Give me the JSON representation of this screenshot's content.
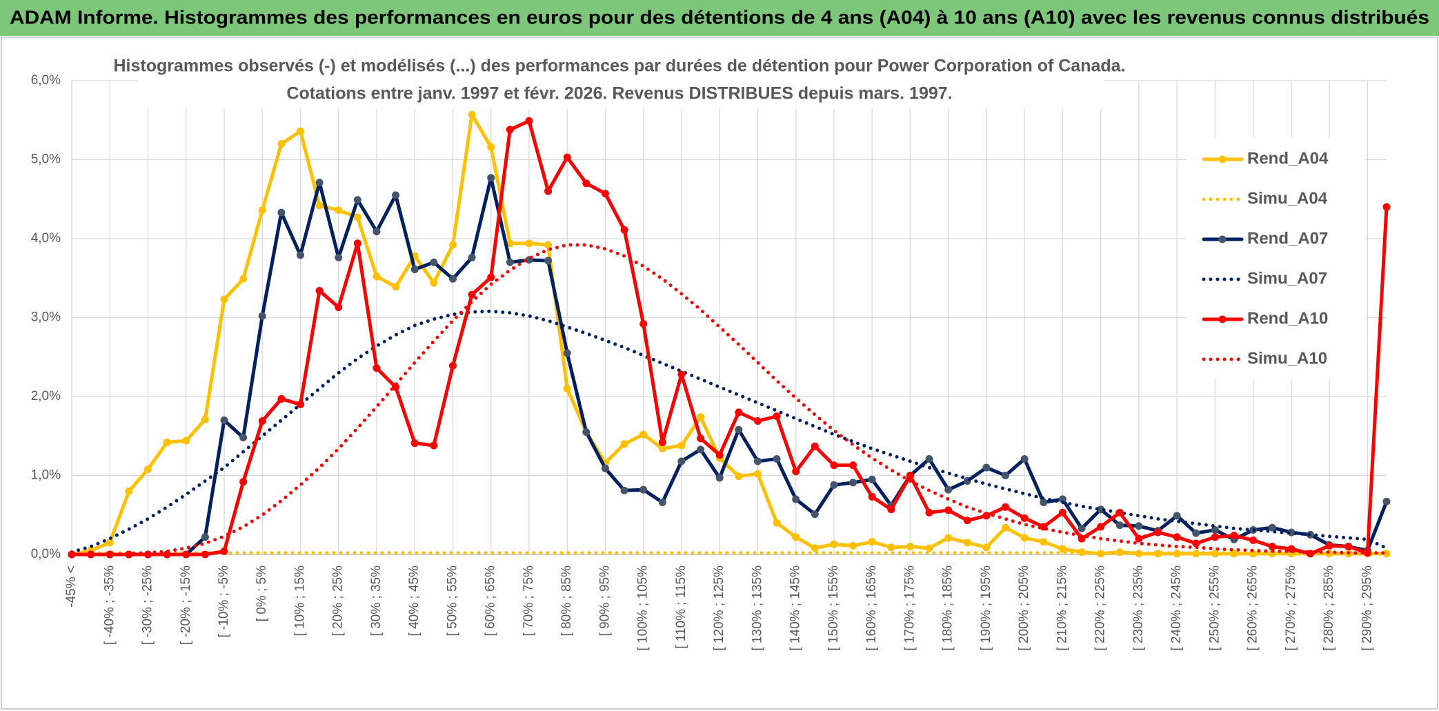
{
  "chart_data": {
    "type": "line",
    "title": "ADAM Informe. Histogrammes des performances en euros pour des détentions de 4 ans (A04) à 10 ans (A10) avec les revenus connus distribués",
    "subtitle": [
      "Histogrammes observés (-) et modélisés (...) des performances par durées de détention pour Power Corporation of Canada.",
      "Cotations entre janv. 1997 et févr. 2026. Revenus DISTRIBUES depuis mars. 1997."
    ],
    "categories": [
      "-45% <",
      null,
      "[ -40% ; -35%",
      null,
      "[ -30% ; -25%",
      null,
      "[ -20% ; -15%",
      null,
      "[ -10% ; -5%",
      null,
      "[ 0% ; 5%",
      null,
      "[ 10% ; 15%",
      null,
      "[ 20% ; 25%",
      null,
      "[ 30% ; 35%",
      null,
      "[ 40% ; 45%",
      null,
      "[ 50% ; 55%",
      null,
      "[ 60% ; 65%",
      null,
      "[ 70% ; 75%",
      null,
      "[ 80% ; 85%",
      null,
      "[ 90% ; 95%",
      null,
      "[ 100% ; 105%",
      null,
      "[ 110% ; 115%",
      null,
      "[ 120% ; 125%",
      null,
      "[ 130% ; 135%",
      null,
      "[ 140% ; 145%",
      null,
      "[ 150% ; 155%",
      null,
      "[ 160% ; 165%",
      null,
      "[ 170% ; 175%",
      null,
      "[ 180% ; 185%",
      null,
      "[ 190% ; 195%",
      null,
      "[ 200% ; 205%",
      null,
      "[ 210% ; 215%",
      null,
      "[ 220% ; 225%",
      null,
      "[ 230% ; 235%",
      null,
      "[ 240% ; 245%",
      null,
      "[ 250% ; 255%",
      null,
      "[ 260% ; 265%",
      null,
      "[ 270% ; 275%",
      null,
      "[ 280% ; 285%",
      null,
      "[ 290% ; 295%",
      null
    ],
    "ylim": [
      0,
      6
    ],
    "yticks": [
      {
        "value": 0,
        "label": "0,0%"
      },
      {
        "value": 1,
        "label": "1,0%"
      },
      {
        "value": 2,
        "label": "2,0%"
      },
      {
        "value": 3,
        "label": "3,0%"
      },
      {
        "value": 4,
        "label": "4,0%"
      },
      {
        "value": 5,
        "label": "5,0%"
      },
      {
        "value": 6,
        "label": "6,0%"
      }
    ],
    "grid": true,
    "legend": "right",
    "series": [
      {
        "name": "Rend_A04",
        "color": "#FFC000",
        "line_style": "solid",
        "values": [
          0,
          0.05,
          0.15,
          0.8,
          1.08,
          1.42,
          1.44,
          1.71,
          3.23,
          3.49,
          4.36,
          5.2,
          5.36,
          4.42,
          4.36,
          4.27,
          3.52,
          3.39,
          3.78,
          3.44,
          3.92,
          5.57,
          5.16,
          3.94,
          3.94,
          3.92,
          2.1,
          1.55,
          1.16,
          1.4,
          1.52,
          1.34,
          1.38,
          1.74,
          1.22,
          0.99,
          1.02,
          0.4,
          0.22,
          0.08,
          0.13,
          0.11,
          0.16,
          0.09,
          0.1,
          0.08,
          0.21,
          0.15,
          0.09,
          0.34,
          0.21,
          0.16,
          0.07,
          0.03,
          0.01,
          0.03,
          0.01,
          0.01,
          0.01,
          0.01,
          0.01,
          0.01,
          0.01,
          0.01,
          0.01,
          0.01,
          0.01,
          0.01,
          0.01,
          0.01
        ]
      },
      {
        "name": "Simu_A04",
        "color": "#FFC000",
        "line_style": "dotted",
        "values": [
          0.02,
          0.02,
          0.02,
          0.02,
          0.02,
          0.02,
          0.02,
          0.02,
          0.02,
          0.02,
          0.02,
          0.02,
          0.02,
          0.02,
          0.02,
          0.02,
          0.02,
          0.02,
          0.02,
          0.02,
          0.02,
          0.02,
          0.02,
          0.02,
          0.02,
          0.02,
          0.02,
          0.02,
          0.02,
          0.02,
          0.02,
          0.02,
          0.02,
          0.02,
          0.02,
          0.02,
          0.02,
          0.02,
          0.02,
          0.02,
          0.02,
          0.02,
          0.02,
          0.02,
          0.02,
          0.02,
          0.02,
          0.02,
          0.02,
          0.02,
          0.02,
          0.02,
          0.02,
          0.02,
          0.02,
          0.02,
          0.02,
          0.02,
          0.02,
          0.02,
          0.02,
          0.02,
          0.02,
          0.02,
          0.02,
          0.02,
          0.02,
          0.02,
          0.02,
          0.02
        ]
      },
      {
        "name": "Rend_A07",
        "color": "#002060",
        "line_style": "solid",
        "values": [
          0,
          0,
          0,
          0,
          0,
          0,
          0,
          0.22,
          1.7,
          1.48,
          3.02,
          4.33,
          3.79,
          4.71,
          3.76,
          4.49,
          4.09,
          4.55,
          3.61,
          3.7,
          3.49,
          3.76,
          4.77,
          3.7,
          3.73,
          3.72,
          2.55,
          1.55,
          1.09,
          0.81,
          0.82,
          0.66,
          1.18,
          1.33,
          0.97,
          1.58,
          1.18,
          1.21,
          0.7,
          0.51,
          0.88,
          0.91,
          0.95,
          0.62,
          1.0,
          1.21,
          0.82,
          0.93,
          1.1,
          1.0,
          1.21,
          0.66,
          0.7,
          0.33,
          0.57,
          0.37,
          0.36,
          0.3,
          0.49,
          0.27,
          0.31,
          0.19,
          0.31,
          0.34,
          0.28,
          0.25,
          0.12,
          0.1,
          0.05,
          0.67
        ]
      },
      {
        "name": "Simu_A07",
        "color": "#002060",
        "line_style": "dotted",
        "values": [
          0.03,
          0.1,
          0.2,
          0.32,
          0.45,
          0.6,
          0.76,
          0.93,
          1.1,
          1.3,
          1.5,
          1.7,
          1.9,
          2.1,
          2.3,
          2.48,
          2.64,
          2.78,
          2.9,
          2.98,
          3.04,
          3.07,
          3.08,
          3.06,
          3.02,
          2.96,
          2.88,
          2.8,
          2.71,
          2.62,
          2.52,
          2.42,
          2.32,
          2.22,
          2.12,
          2.02,
          1.92,
          1.82,
          1.72,
          1.62,
          1.52,
          1.43,
          1.34,
          1.26,
          1.18,
          1.1,
          1.03,
          0.96,
          0.89,
          0.83,
          0.77,
          0.71,
          0.66,
          0.61,
          0.57,
          0.53,
          0.49,
          0.45,
          0.42,
          0.39,
          0.36,
          0.33,
          0.31,
          0.29,
          0.27,
          0.25,
          0.23,
          0.21,
          0.19,
          0.08
        ]
      },
      {
        "name": "Rend_A10",
        "color": "#FF0000",
        "line_style": "solid",
        "values": [
          0,
          0,
          0,
          0,
          0,
          0,
          0,
          0,
          0.04,
          0.92,
          1.69,
          1.97,
          1.9,
          3.34,
          3.13,
          3.94,
          2.36,
          2.12,
          1.41,
          1.38,
          2.39,
          3.29,
          3.51,
          5.38,
          5.49,
          4.6,
          5.03,
          4.7,
          4.57,
          4.11,
          2.92,
          1.42,
          2.28,
          1.47,
          1.26,
          1.8,
          1.69,
          1.75,
          1.05,
          1.37,
          1.13,
          1.13,
          0.73,
          0.57,
          1.0,
          0.53,
          0.56,
          0.43,
          0.49,
          0.6,
          0.46,
          0.35,
          0.53,
          0.2,
          0.35,
          0.53,
          0.2,
          0.28,
          0.22,
          0.14,
          0.22,
          0.24,
          0.18,
          0.1,
          0.07,
          0.01,
          0.11,
          0.1,
          0.02,
          4.4
        ]
      },
      {
        "name": "Simu_A10",
        "color": "#FF0000",
        "line_style": "dotted",
        "values": [
          0,
          0,
          0,
          0.01,
          0.02,
          0.04,
          0.08,
          0.14,
          0.23,
          0.35,
          0.5,
          0.68,
          0.88,
          1.1,
          1.34,
          1.6,
          1.87,
          2.15,
          2.43,
          2.7,
          2.96,
          3.2,
          3.42,
          3.6,
          3.75,
          3.86,
          3.92,
          3.92,
          3.87,
          3.78,
          3.65,
          3.49,
          3.3,
          3.1,
          2.88,
          2.66,
          2.43,
          2.2,
          1.98,
          1.77,
          1.57,
          1.39,
          1.22,
          1.07,
          0.93,
          0.81,
          0.7,
          0.6,
          0.52,
          0.45,
          0.38,
          0.33,
          0.28,
          0.24,
          0.2,
          0.17,
          0.14,
          0.12,
          0.1,
          0.09,
          0.07,
          0.06,
          0.05,
          0.04,
          0.04,
          0.03,
          0.03,
          0.02,
          0.02,
          0.02
        ]
      }
    ]
  }
}
